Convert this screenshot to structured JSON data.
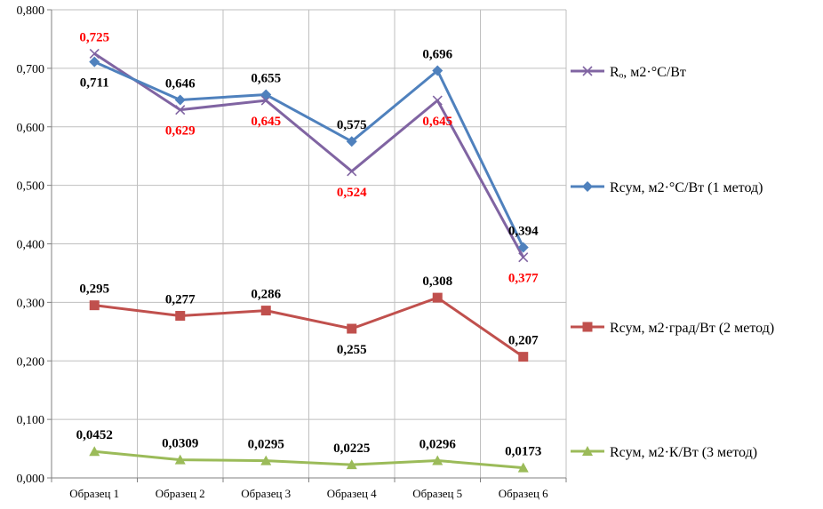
{
  "chart_data": {
    "type": "line",
    "categories": [
      "Образец 1",
      "Образец 2",
      "Образец 3",
      "Образец 4",
      "Образец 5",
      "Образец 6"
    ],
    "ylim": [
      0,
      0.8
    ],
    "yticks": [
      "0,000",
      "0,100",
      "0,200",
      "0,300",
      "0,400",
      "0,500",
      "0,600",
      "0,700",
      "0,800"
    ],
    "grid": true,
    "legend_position": "right",
    "series": [
      {
        "name": "Rₒ, м2·°С/Вт",
        "values": [
          0.725,
          0.629,
          0.645,
          0.524,
          0.645,
          0.377
        ],
        "labels": [
          "0,725",
          "0,629",
          "0,645",
          "0,524",
          "0,645",
          "0,377"
        ],
        "color": "#8064a2",
        "label_color": "#ff0000",
        "marker": "x",
        "label_pos": [
          "above",
          "below",
          "below",
          "below",
          "below",
          "below"
        ]
      },
      {
        "name": "Rсум, м2·°С/Вт (1 метод)",
        "values": [
          0.711,
          0.646,
          0.655,
          0.575,
          0.696,
          0.394
        ],
        "labels": [
          "0,711",
          "0,646",
          "0,655",
          "0,575",
          "0,696",
          "0,394"
        ],
        "color": "#4f81bd",
        "label_color": "#000000",
        "marker": "diamond",
        "label_pos": [
          "below",
          "above",
          "above",
          "above",
          "above",
          "above"
        ]
      },
      {
        "name": "Rсум, м2·град/Вт (2 метод)",
        "values": [
          0.295,
          0.277,
          0.286,
          0.255,
          0.308,
          0.207
        ],
        "labels": [
          "0,295",
          "0,277",
          "0,286",
          "0,255",
          "0,308",
          "0,207"
        ],
        "color": "#c0504d",
        "label_color": "#000000",
        "marker": "square",
        "label_pos": [
          "above",
          "above",
          "above",
          "below",
          "above",
          "above"
        ]
      },
      {
        "name": "Rсум, м2·К/Вт (3 метод)",
        "values": [
          0.0452,
          0.0309,
          0.0295,
          0.0225,
          0.0296,
          0.0173
        ],
        "labels": [
          "0,0452",
          "0,0309",
          "0,0295",
          "0,0225",
          "0,0296",
          "0,0173"
        ],
        "color": "#9bbb59",
        "label_color": "#000000",
        "marker": "triangle",
        "label_pos": [
          "above",
          "above",
          "above",
          "above",
          "above",
          "above"
        ]
      }
    ]
  }
}
